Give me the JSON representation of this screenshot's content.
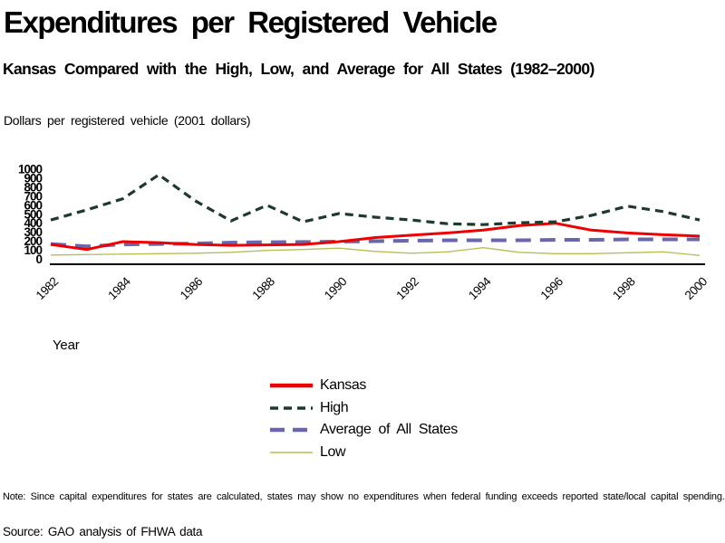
{
  "title": "Expenditures per Registered Vehicle",
  "subtitle": "Kansas Compared with the High, Low, and Average for All States (1982–2000)",
  "y_axis_unit_label": "Dollars per registered vehicle (2001 dollars)",
  "x_axis_label": "Year",
  "note": "Note: Since capital expenditures for states are calculated, states may show no expenditures when federal funding exceeds reported state/local capital spending.",
  "source": "Source: GAO analysis of FHWA data",
  "colors": {
    "kansas": "#ee0000",
    "high": "#1e3a2a",
    "average": "#6a66ab",
    "low": "#b9bd55",
    "axis": "#000000"
  },
  "legend": {
    "items": [
      {
        "label": "Kansas",
        "color": "#ee0000",
        "style": "solid-thick"
      },
      {
        "label": "High",
        "color": "#1e3a2a",
        "style": "dashed-short"
      },
      {
        "label": "Average of All States",
        "color": "#6a66ab",
        "style": "dashed-long"
      },
      {
        "label": "Low",
        "color": "#b9bd55",
        "style": "solid-thin"
      }
    ]
  },
  "chart_data": {
    "type": "line",
    "title": "Expenditures per Registered Vehicle",
    "xlabel": "Year",
    "ylabel": "Dollars per registered vehicle (2001 dollars)",
    "x": [
      1982,
      1983,
      1984,
      1985,
      1986,
      1987,
      1988,
      1989,
      1990,
      1991,
      1992,
      1993,
      1994,
      1995,
      1996,
      1997,
      1998,
      1999,
      2000
    ],
    "x_tick_labels": [
      "1982",
      "1984",
      "1986",
      "1988",
      "1990",
      "1992",
      "1994",
      "1996",
      "1998",
      "2000"
    ],
    "ylim": [
      0,
      1000
    ],
    "y_ticks": [
      0,
      100,
      200,
      300,
      400,
      500,
      600,
      700,
      800,
      900,
      1000
    ],
    "grid": false,
    "legend_position": "bottom-center",
    "series": [
      {
        "name": "Kansas",
        "color": "#ee0000",
        "dash": null,
        "width": 3,
        "values": [
          195,
          140,
          225,
          215,
          195,
          185,
          190,
          195,
          225,
          270,
          295,
          320,
          350,
          400,
          425,
          350,
          320,
          300,
          285
        ]
      },
      {
        "name": "High",
        "color": "#1e3a2a",
        "dash": [
          9,
          6
        ],
        "width": 3.2,
        "values": [
          460,
          570,
          690,
          950,
          670,
          450,
          620,
          440,
          530,
          490,
          460,
          420,
          410,
          430,
          440,
          510,
          610,
          550,
          460
        ]
      },
      {
        "name": "Average of All States",
        "color": "#6a66ab",
        "dash": [
          17,
          10
        ],
        "width": 4,
        "values": [
          200,
          175,
          195,
          200,
          205,
          215,
          220,
          222,
          225,
          230,
          235,
          240,
          240,
          240,
          245,
          245,
          250,
          250,
          250
        ]
      },
      {
        "name": "Low",
        "color": "#b9bd55",
        "dash": null,
        "width": 1.3,
        "values": [
          80,
          85,
          90,
          95,
          100,
          110,
          130,
          140,
          155,
          120,
          100,
          115,
          160,
          110,
          95,
          95,
          105,
          115,
          75
        ]
      }
    ]
  }
}
